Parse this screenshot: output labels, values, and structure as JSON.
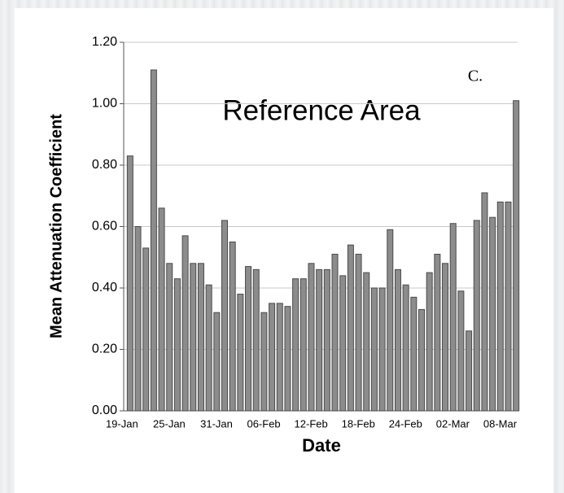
{
  "chart_data": {
    "type": "bar",
    "y_label": "Mean Attenuation Coefficient",
    "x_label": "Date",
    "annotations": [
      "Reference Area",
      "C."
    ],
    "categories": [
      "19-Jan",
      null,
      null,
      null,
      null,
      null,
      "25-Jan",
      null,
      null,
      null,
      null,
      null,
      "31-Jan",
      null,
      null,
      null,
      null,
      null,
      "06-Feb",
      null,
      null,
      null,
      null,
      null,
      "12-Feb",
      null,
      null,
      null,
      null,
      null,
      "18-Feb",
      null,
      null,
      null,
      null,
      null,
      "24-Feb",
      null,
      null,
      null,
      null,
      null,
      "02-Mar",
      null,
      null,
      null,
      null,
      null,
      "08-Mar",
      null
    ],
    "values": [
      0.83,
      0.6,
      0.53,
      1.11,
      0.66,
      0.48,
      0.43,
      0.57,
      0.48,
      0.48,
      0.41,
      0.32,
      0.62,
      0.55,
      0.38,
      0.47,
      0.46,
      0.32,
      0.35,
      0.35,
      0.34,
      0.43,
      0.43,
      0.48,
      0.46,
      0.46,
      0.51,
      0.44,
      0.54,
      0.51,
      0.45,
      0.4,
      0.4,
      0.59,
      0.46,
      0.41,
      0.37,
      0.33,
      0.45,
      0.51,
      0.48,
      0.61,
      0.39,
      0.26,
      0.62,
      0.71,
      0.63,
      0.68,
      0.68,
      1.01
    ],
    "color": "#8c8c8c",
    "ylim": [
      0,
      1.2
    ],
    "yticks": [
      {
        "value": 0,
        "label": "0.00"
      },
      {
        "value": 0.2,
        "label": "0.20"
      },
      {
        "value": 0.4,
        "label": "0.40"
      },
      {
        "value": 0.6,
        "label": "0.60"
      },
      {
        "value": 0.8,
        "label": "0.80"
      },
      {
        "value": 1.0,
        "label": "1.00"
      },
      {
        "value": 1.2,
        "label": "1.20"
      }
    ],
    "grid": true
  }
}
